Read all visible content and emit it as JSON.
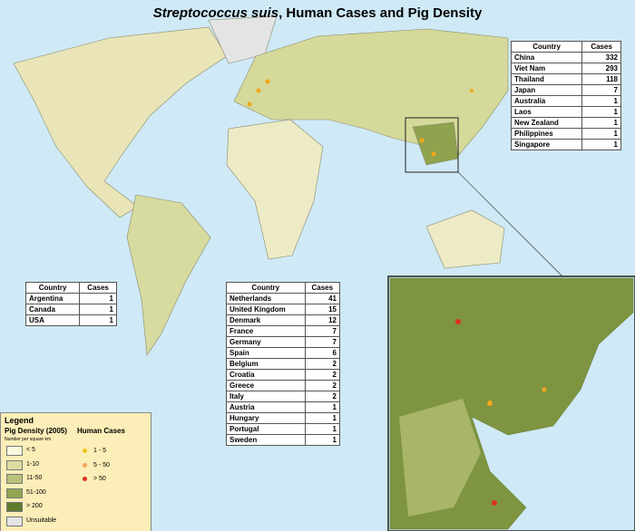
{
  "title": {
    "italic": "Streptococcus suis",
    "rest": ", Human Cases and Pig Density"
  },
  "tables": [
    {
      "headers": [
        "Country",
        "Cases"
      ],
      "rows": [
        [
          "China",
          332
        ],
        [
          "Viet Nam",
          293
        ],
        [
          "Thailand",
          118
        ],
        [
          "Japan",
          7
        ],
        [
          "Australia",
          1
        ],
        [
          "Laos",
          1
        ],
        [
          "New Zealand",
          1
        ],
        [
          "Philippines",
          1
        ],
        [
          "Singapore",
          1
        ]
      ]
    },
    {
      "headers": [
        "Country",
        "Cases"
      ],
      "rows": [
        [
          "Argentina",
          1
        ],
        [
          "Canada",
          1
        ],
        [
          "USA",
          1
        ]
      ]
    },
    {
      "headers": [
        "Country",
        "Cases"
      ],
      "rows": [
        [
          "Netherlands",
          41
        ],
        [
          "United Kingdom",
          15
        ],
        [
          "Denmark",
          12
        ],
        [
          "France",
          7
        ],
        [
          "Germany",
          7
        ],
        [
          "Spain",
          6
        ],
        [
          "Belgium",
          2
        ],
        [
          "Croatia",
          2
        ],
        [
          "Greece",
          2
        ],
        [
          "Italy",
          2
        ],
        [
          "Austria",
          1
        ],
        [
          "Hungary",
          1
        ],
        [
          "Portugal",
          1
        ],
        [
          "Sweden",
          1
        ]
      ]
    }
  ],
  "legend": {
    "title": "Legend",
    "density_title": "Pig Density (2005)",
    "density_unit": "Number per square km",
    "cases_title": "Human Cases",
    "density_classes": [
      "< 5",
      "1-10",
      "11-50",
      "51-100",
      "> 200",
      "Unsuitable"
    ],
    "case_classes": [
      "1 - 5",
      "5 - 50",
      "> 50"
    ]
  }
}
